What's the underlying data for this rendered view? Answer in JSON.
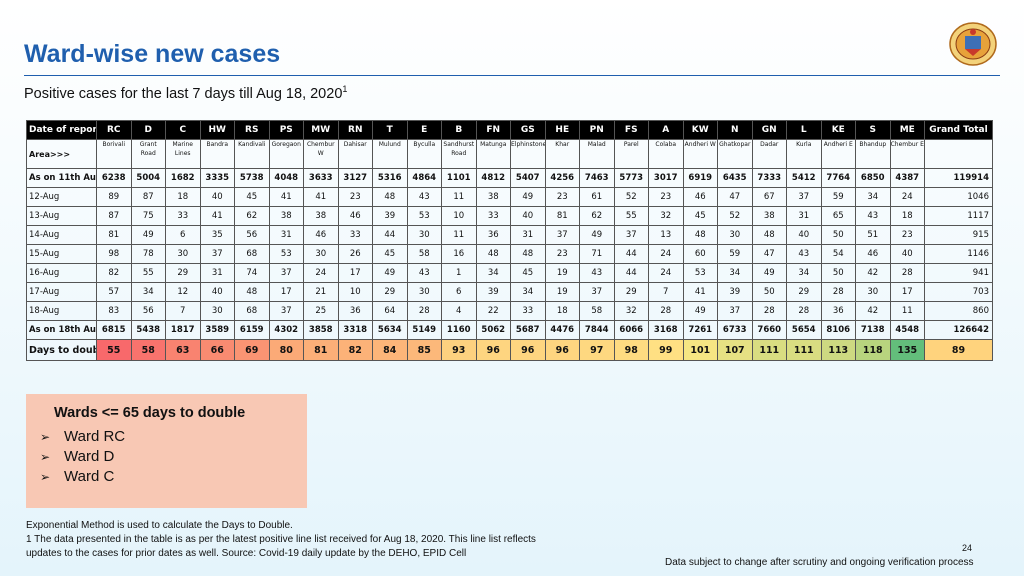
{
  "title": "Ward-wise new cases",
  "subtitle": "Positive cases for the last 7 days till Aug 18, 2020",
  "subtitle_sup": "1",
  "logo_icon": "municipal-seal-icon",
  "table": {
    "header_label": "Date of report",
    "wards": [
      "RC",
      "D",
      "C",
      "HW",
      "RS",
      "PS",
      "MW",
      "RN",
      "T",
      "E",
      "B",
      "FN",
      "GS",
      "HE",
      "PN",
      "FS",
      "A",
      "KW",
      "N",
      "GN",
      "L",
      "KE",
      "S",
      "ME"
    ],
    "grand_total_label": "Grand Total",
    "area_label": "Area>>>",
    "areas": [
      "Borivali",
      "Grant Road",
      "Marine Lines",
      "Bandra",
      "Kandivali",
      "Goregaon",
      "Chembur W",
      "Dahisar",
      "Mulund",
      "Byculla",
      "Sandhurst Road",
      "Matunga",
      "Elphinstone",
      "Khar",
      "Malad",
      "Parel",
      "Colaba",
      "Andheri W",
      "Ghatkopar",
      "Dadar",
      "Kurla",
      "Andheri E",
      "Bhandup",
      "Chembur E"
    ],
    "rows": [
      {
        "label": "As on 11th Aug",
        "values": [
          "6238",
          "5004",
          "1682",
          "3335",
          "5738",
          "4048",
          "3633",
          "3127",
          "5316",
          "4864",
          "1101",
          "4812",
          "5407",
          "4256",
          "7463",
          "5773",
          "3017",
          "6919",
          "6435",
          "7333",
          "5412",
          "7764",
          "6850",
          "4387"
        ],
        "total": "119914",
        "bold": true
      },
      {
        "label": "12-Aug",
        "values": [
          "89",
          "87",
          "18",
          "40",
          "45",
          "41",
          "41",
          "23",
          "48",
          "43",
          "11",
          "38",
          "49",
          "23",
          "61",
          "52",
          "23",
          "46",
          "47",
          "67",
          "37",
          "59",
          "34",
          "24"
        ],
        "total": "1046"
      },
      {
        "label": "13-Aug",
        "values": [
          "87",
          "75",
          "33",
          "41",
          "62",
          "38",
          "38",
          "46",
          "39",
          "53",
          "10",
          "33",
          "40",
          "81",
          "62",
          "55",
          "32",
          "45",
          "52",
          "38",
          "31",
          "65",
          "43",
          "18"
        ],
        "total": "1117"
      },
      {
        "label": "14-Aug",
        "values": [
          "81",
          "49",
          "6",
          "35",
          "56",
          "31",
          "46",
          "33",
          "44",
          "30",
          "11",
          "36",
          "31",
          "37",
          "49",
          "37",
          "13",
          "48",
          "30",
          "48",
          "40",
          "50",
          "51",
          "23"
        ],
        "total": "915"
      },
      {
        "label": "15-Aug",
        "values": [
          "98",
          "78",
          "30",
          "37",
          "68",
          "53",
          "30",
          "26",
          "45",
          "58",
          "16",
          "48",
          "48",
          "23",
          "71",
          "44",
          "24",
          "60",
          "59",
          "47",
          "43",
          "54",
          "46",
          "40"
        ],
        "total": "1146"
      },
      {
        "label": "16-Aug",
        "values": [
          "82",
          "55",
          "29",
          "31",
          "74",
          "37",
          "24",
          "17",
          "49",
          "43",
          "1",
          "34",
          "45",
          "19",
          "43",
          "44",
          "24",
          "53",
          "34",
          "49",
          "34",
          "50",
          "42",
          "28"
        ],
        "total": "941"
      },
      {
        "label": "17-Aug",
        "values": [
          "57",
          "34",
          "12",
          "40",
          "48",
          "17",
          "21",
          "10",
          "29",
          "30",
          "6",
          "39",
          "34",
          "19",
          "37",
          "29",
          "7",
          "41",
          "39",
          "50",
          "29",
          "28",
          "30",
          "17"
        ],
        "total": "703"
      },
      {
        "label": "18-Aug",
        "values": [
          "83",
          "56",
          "7",
          "30",
          "68",
          "37",
          "25",
          "36",
          "64",
          "28",
          "4",
          "22",
          "33",
          "18",
          "58",
          "32",
          "28",
          "49",
          "37",
          "28",
          "28",
          "36",
          "42",
          "11"
        ],
        "total": "860"
      },
      {
        "label": "As on 18th Aug",
        "values": [
          "6815",
          "5438",
          "1817",
          "3589",
          "6159",
          "4302",
          "3858",
          "3318",
          "5634",
          "5149",
          "1160",
          "5062",
          "5687",
          "4476",
          "7844",
          "6066",
          "3168",
          "7261",
          "6733",
          "7660",
          "5654",
          "8106",
          "7138",
          "4548"
        ],
        "total": "126642",
        "bold": true
      }
    ],
    "days_label": "Days to double",
    "days": [
      "55",
      "58",
      "63",
      "66",
      "69",
      "80",
      "81",
      "82",
      "84",
      "85",
      "93",
      "96",
      "96",
      "96",
      "97",
      "98",
      "99",
      "101",
      "107",
      "111",
      "111",
      "113",
      "118",
      "135"
    ],
    "days_total": "89",
    "days_colors": [
      "#f8696b",
      "#f8736d",
      "#f98370",
      "#f98b71",
      "#fa9473",
      "#fbaa77",
      "#fbaf78",
      "#fcb278",
      "#fcb579",
      "#fcb87a",
      "#fdd17f",
      "#fed580",
      "#fed580",
      "#fed580",
      "#fed880",
      "#fedb81",
      "#ffe083",
      "#f6e683",
      "#e6e183",
      "#d9dd81",
      "#d9dd81",
      "#cdd981",
      "#b8d47e",
      "#63be7b"
    ],
    "days_total_color": "#ffd37d"
  },
  "box": {
    "title": "Wards <= 65 days to double",
    "items": [
      "Ward RC",
      "Ward D",
      "Ward C"
    ],
    "color": "#f8c8b4"
  },
  "footnotes": [
    "Exponential Method is used to calculate the Days to Double.",
    "1 The data presented in the table is as per the latest positive line list received for Aug 18, 2020. This line list reflects",
    "updates to the cases for prior dates as well. Source: Covid-19 daily update by the DEHO, EPID Cell"
  ],
  "page_number": "24",
  "disclaimer": "Data subject to change after scrutiny and ongoing verification process"
}
